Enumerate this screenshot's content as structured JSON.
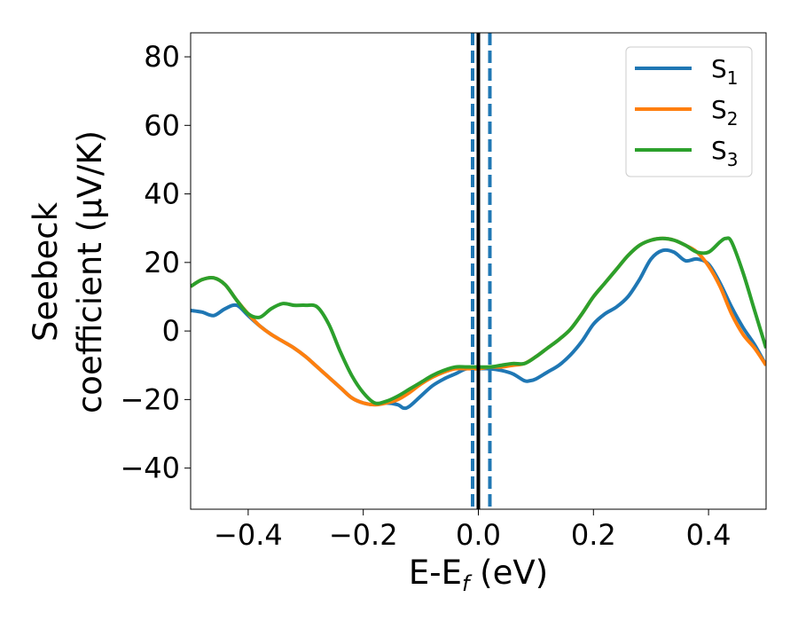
{
  "chart_data": {
    "type": "line",
    "title": "",
    "xlabel": {
      "main": "E-E",
      "sub": "f",
      "tail": " (eV)"
    },
    "ylabel": {
      "line1": "Seebeck",
      "line2": "coefficient  (μV/K)"
    },
    "xlim": [
      -0.5,
      0.5
    ],
    "ylim": [
      -52,
      87
    ],
    "xticks": [
      -0.4,
      -0.2,
      0.0,
      0.2,
      0.4
    ],
    "xtick_labels": [
      "−0.4",
      "−0.2",
      "0.0",
      "0.2",
      "0.4"
    ],
    "yticks": [
      -40,
      -20,
      0,
      20,
      40,
      60,
      80
    ],
    "ytick_labels": [
      "−40",
      "−20",
      "0",
      "20",
      "40",
      "60",
      "80"
    ],
    "grid": false,
    "legend_position": "top-right",
    "series": [
      {
        "name": "S",
        "sub": "1",
        "color": "#1f77b4",
        "x": [
          -0.5,
          -0.48,
          -0.46,
          -0.44,
          -0.42,
          -0.4,
          -0.38,
          -0.36,
          -0.34,
          -0.32,
          -0.3,
          -0.28,
          -0.26,
          -0.24,
          -0.22,
          -0.2,
          -0.18,
          -0.16,
          -0.14,
          -0.13,
          -0.12,
          -0.1,
          -0.08,
          -0.06,
          -0.04,
          -0.02,
          0.0,
          0.02,
          0.04,
          0.06,
          0.08,
          0.09,
          0.1,
          0.12,
          0.14,
          0.16,
          0.18,
          0.2,
          0.22,
          0.24,
          0.26,
          0.28,
          0.3,
          0.32,
          0.34,
          0.36,
          0.38,
          0.4,
          0.42,
          0.44,
          0.46,
          0.48,
          0.5
        ],
        "y": [
          6,
          5.5,
          4.5,
          6.5,
          7.5,
          4.5,
          1.5,
          -1,
          -3,
          -5,
          -7.5,
          -10.5,
          -13.5,
          -16.5,
          -19.5,
          -21,
          -21.5,
          -21,
          -21.5,
          -22.5,
          -22,
          -19,
          -16,
          -14,
          -12.5,
          -11,
          -11,
          -11,
          -11.5,
          -12.5,
          -14.5,
          -14.5,
          -14,
          -12,
          -10,
          -7,
          -3,
          2,
          5,
          7,
          10,
          15,
          21,
          23.5,
          23,
          20.5,
          21,
          19.5,
          14,
          7,
          1,
          -4,
          -10
        ]
      },
      {
        "name": "S",
        "sub": "2",
        "color": "#ff7f0e",
        "x": [
          -0.5,
          -0.48,
          -0.46,
          -0.44,
          -0.42,
          -0.4,
          -0.38,
          -0.36,
          -0.34,
          -0.32,
          -0.3,
          -0.28,
          -0.26,
          -0.24,
          -0.22,
          -0.2,
          -0.18,
          -0.16,
          -0.14,
          -0.12,
          -0.1,
          -0.08,
          -0.06,
          -0.04,
          -0.02,
          0.0,
          0.02,
          0.04,
          0.06,
          0.08,
          0.1,
          0.12,
          0.14,
          0.16,
          0.18,
          0.2,
          0.22,
          0.24,
          0.26,
          0.28,
          0.3,
          0.32,
          0.34,
          0.36,
          0.38,
          0.4,
          0.42,
          0.44,
          0.46,
          0.48,
          0.5
        ],
        "y": [
          13,
          15,
          15.5,
          13.5,
          9,
          5,
          1.5,
          -1,
          -3,
          -5,
          -7.5,
          -10.5,
          -13.5,
          -16.5,
          -19.5,
          -21,
          -21.5,
          -21,
          -20,
          -18,
          -15.5,
          -13.5,
          -12,
          -11,
          -11,
          -11,
          -10.5,
          -10.5,
          -10,
          -9.5,
          -7.5,
          -5,
          -2.5,
          0.5,
          5,
          10,
          14,
          18,
          22,
          25,
          26.5,
          27,
          26.5,
          25,
          23,
          19,
          13,
          5,
          -1,
          -5,
          -10
        ]
      },
      {
        "name": "S",
        "sub": "3",
        "color": "#2ca02c",
        "x": [
          -0.5,
          -0.48,
          -0.46,
          -0.44,
          -0.42,
          -0.4,
          -0.38,
          -0.36,
          -0.34,
          -0.32,
          -0.3,
          -0.28,
          -0.26,
          -0.24,
          -0.22,
          -0.2,
          -0.18,
          -0.16,
          -0.14,
          -0.12,
          -0.1,
          -0.08,
          -0.06,
          -0.04,
          -0.02,
          0.0,
          0.02,
          0.04,
          0.06,
          0.08,
          0.1,
          0.12,
          0.14,
          0.16,
          0.18,
          0.2,
          0.22,
          0.24,
          0.26,
          0.28,
          0.3,
          0.32,
          0.34,
          0.36,
          0.38,
          0.4,
          0.42,
          0.43,
          0.44,
          0.46,
          0.48,
          0.5
        ],
        "y": [
          13,
          15,
          15.5,
          13.5,
          9,
          5,
          4,
          6.5,
          8,
          7.5,
          7.5,
          7,
          2,
          -6,
          -13,
          -18,
          -21,
          -20.5,
          -19,
          -17,
          -15,
          -13,
          -11.5,
          -10.5,
          -10.5,
          -10.5,
          -10.5,
          -10,
          -9.5,
          -9.5,
          -7.5,
          -5,
          -2.5,
          0.5,
          5,
          10,
          14,
          18,
          22,
          25,
          26.5,
          27,
          26.5,
          25,
          23,
          23,
          26,
          27,
          26,
          17,
          6,
          -5
        ]
      }
    ],
    "vlines": [
      {
        "x": 0.0,
        "style": "solid",
        "color": "#000000"
      },
      {
        "x": -0.01,
        "style": "dashed",
        "color": "#1f77b4"
      },
      {
        "x": 0.02,
        "style": "dashed",
        "color": "#1f77b4"
      }
    ]
  }
}
